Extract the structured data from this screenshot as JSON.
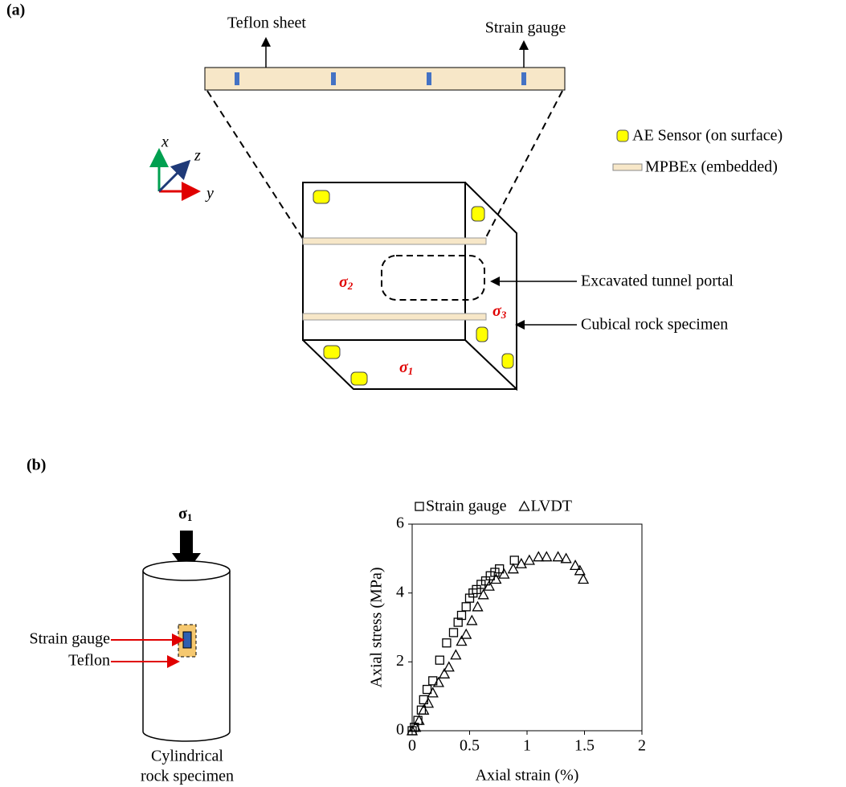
{
  "panel_a": {
    "label": "(a)",
    "teflon_sheet": "Teflon sheet",
    "strain_gauge": "Strain gauge",
    "legend": [
      "AE Sensor (on surface)",
      "MPBEx (embedded)"
    ],
    "axes": {
      "x": "x",
      "y": "y",
      "z": "z"
    },
    "sigma2": {
      "symbol": "σ",
      "subscript": "2"
    },
    "sigma3": {
      "symbol": "σ",
      "subscript": "3"
    },
    "sigma1": {
      "symbol": "σ",
      "subscript": "1"
    },
    "tunnel": "Excavated tunnel portal",
    "specimen": "Cubical rock specimen"
  },
  "panel_b": {
    "label": "(b)",
    "sigma1": {
      "symbol": "σ",
      "subscript": "1"
    },
    "strain_gauge": "Strain gauge",
    "teflon": "Teflon",
    "caption": [
      "Cylindrical",
      "rock specimen"
    ]
  },
  "chart_data": {
    "type": "scatter",
    "x_label": "Axial strain (%)",
    "y_label": "Axial stress (MPa)",
    "xlim": [
      0,
      2
    ],
    "xticks": [
      0,
      0.5,
      1,
      1.5,
      2
    ],
    "ylim": [
      0,
      6
    ],
    "yticks": [
      0,
      2,
      4,
      6
    ],
    "series": [
      {
        "name": "Strain gauge",
        "color": "#000000",
        "marker": "square",
        "x": [
          0,
          0.02,
          0.05,
          0.08,
          0.1,
          0.13,
          0.18,
          0.24,
          0.3,
          0.36,
          0.4,
          0.43,
          0.47,
          0.5,
          0.53,
          0.56,
          0.6,
          0.64,
          0.68,
          0.72,
          0.76,
          0.89
        ],
        "values": [
          0,
          0.1,
          0.3,
          0.6,
          0.9,
          1.2,
          1.45,
          2.05,
          2.55,
          2.85,
          3.15,
          3.35,
          3.6,
          3.85,
          4.0,
          4.1,
          4.25,
          4.35,
          4.5,
          4.6,
          4.7,
          4.95
        ]
      },
      {
        "name": "LVDT",
        "color": "#000000",
        "marker": "triangle",
        "x": [
          0,
          0.03,
          0.06,
          0.1,
          0.14,
          0.18,
          0.23,
          0.28,
          0.32,
          0.38,
          0.43,
          0.47,
          0.52,
          0.57,
          0.62,
          0.67,
          0.73,
          0.8,
          0.88,
          0.95,
          1.02,
          1.1,
          1.17,
          1.27,
          1.34,
          1.42,
          1.46,
          1.49
        ],
        "values": [
          0,
          0.1,
          0.3,
          0.6,
          0.8,
          1.1,
          1.4,
          1.65,
          1.85,
          2.2,
          2.6,
          2.8,
          3.2,
          3.6,
          3.95,
          4.2,
          4.4,
          4.55,
          4.7,
          4.85,
          4.95,
          5.05,
          5.05,
          5.05,
          5.0,
          4.8,
          4.65,
          4.4
        ]
      }
    ]
  }
}
